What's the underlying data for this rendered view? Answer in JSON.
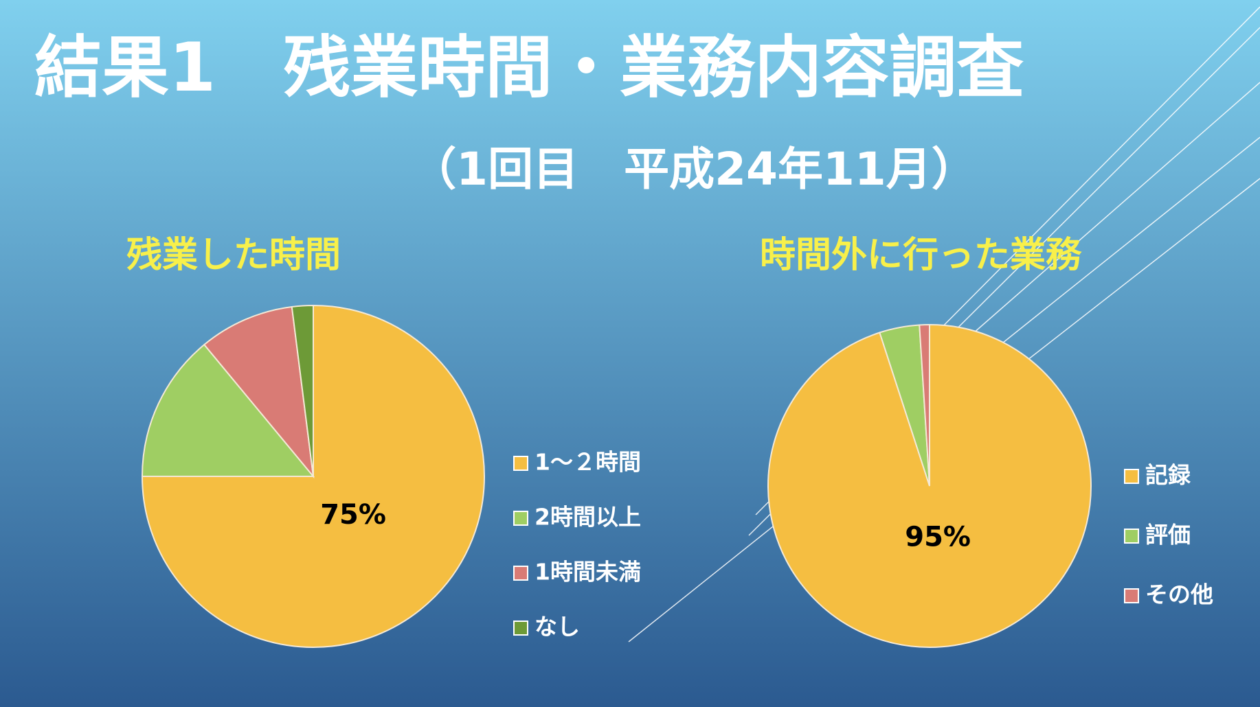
{
  "header": {
    "title": "結果1　残業時間・業務内容調査",
    "subtitle": "（1回目　平成24年11月）"
  },
  "chart_data": [
    {
      "type": "pie",
      "title": "残業した時間",
      "categories": [
        "1～２時間",
        "2時間以上",
        "1時間未満",
        "なし"
      ],
      "values": [
        75,
        14,
        9,
        2
      ],
      "value_labels": [
        "75%",
        null,
        null,
        null
      ],
      "colors": [
        "#f5be41",
        "#9fce63",
        "#d97b75",
        "#6d9a37"
      ],
      "legend": "right"
    },
    {
      "type": "pie",
      "title": "時間外に行った業務",
      "categories": [
        "記録",
        "評価",
        "その他"
      ],
      "values": [
        95,
        4,
        1
      ],
      "value_labels": [
        "95%",
        null,
        null
      ],
      "colors": [
        "#f5be41",
        "#9fce63",
        "#d97b75"
      ],
      "legend": "right"
    }
  ]
}
